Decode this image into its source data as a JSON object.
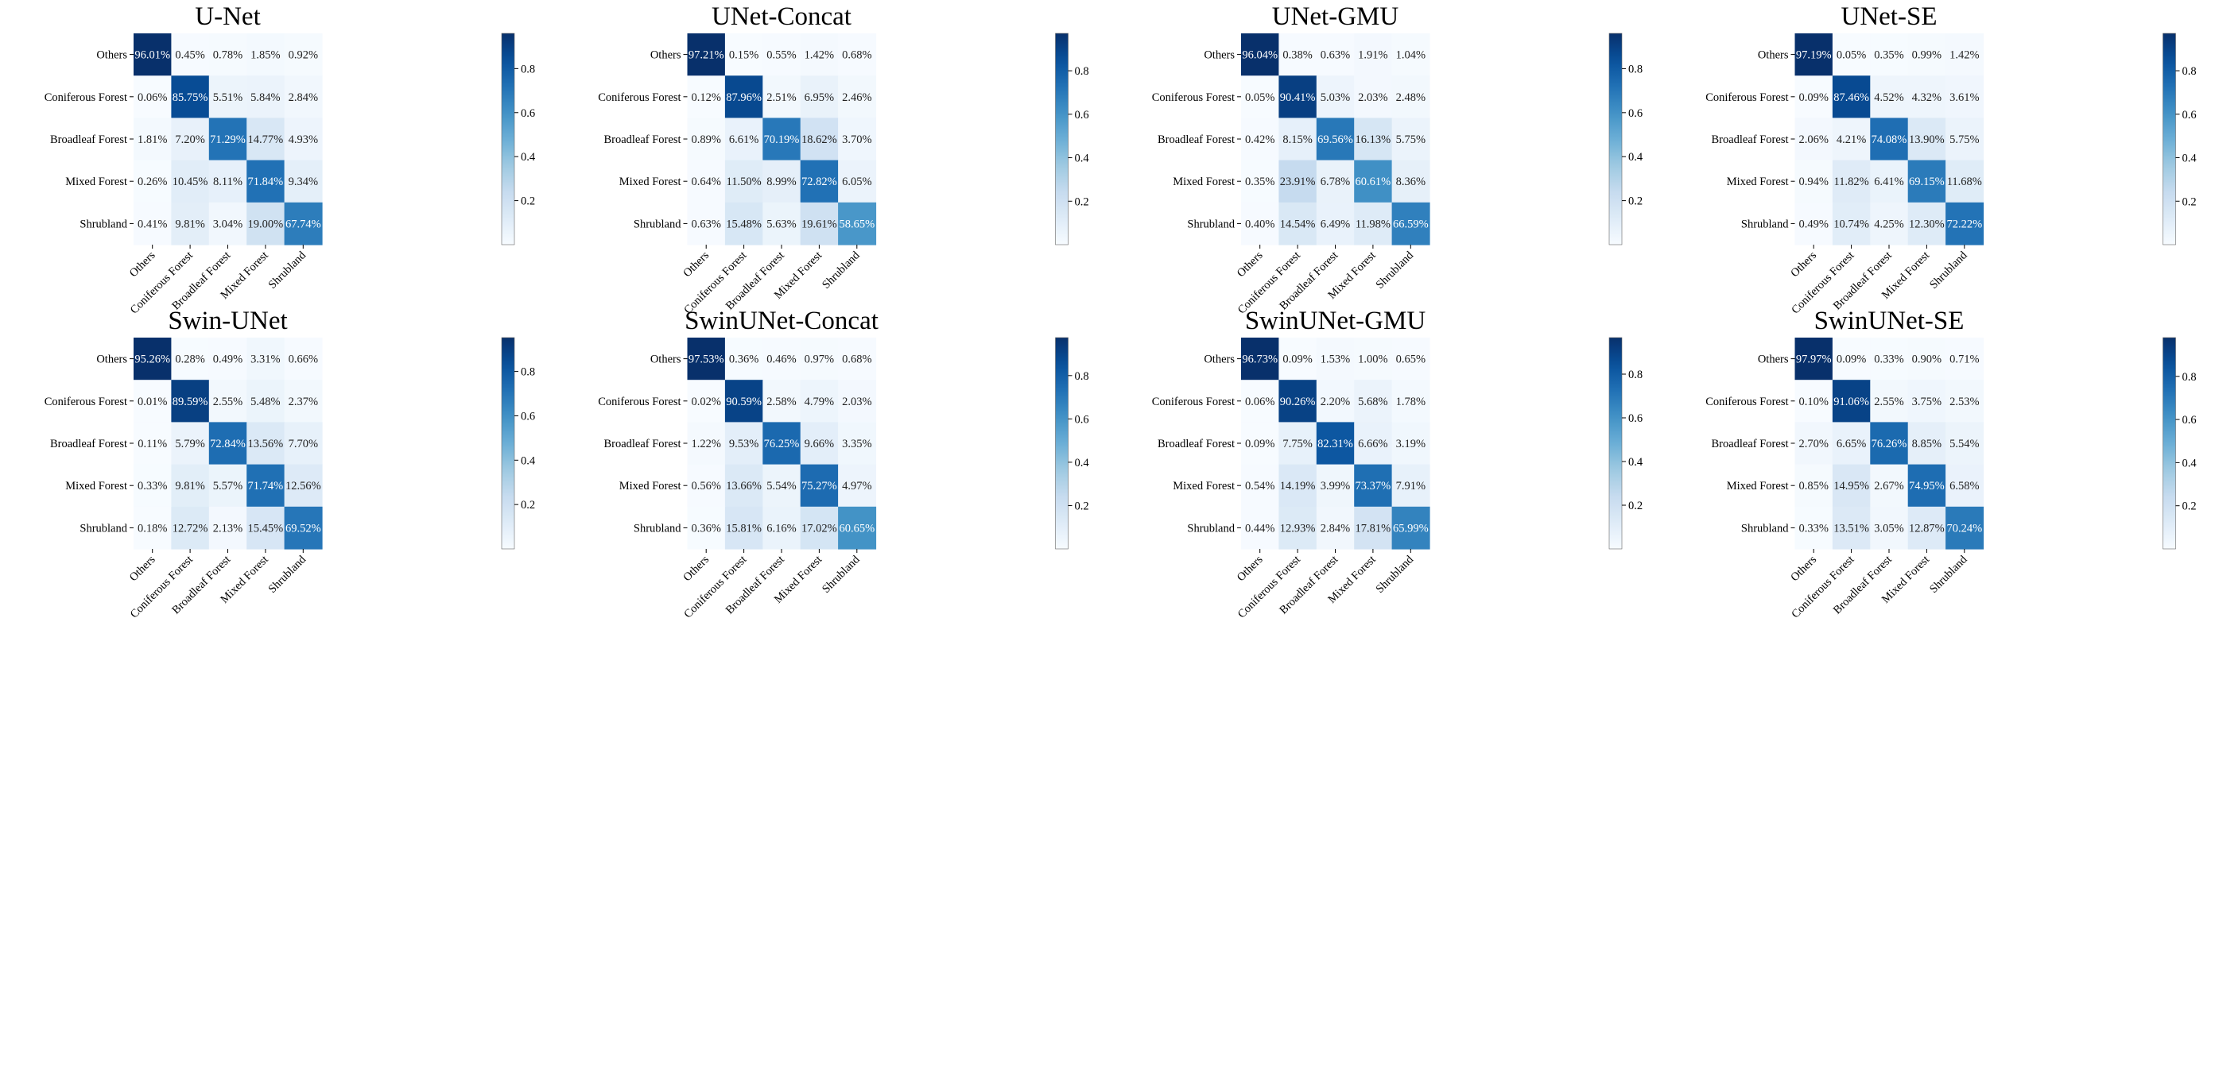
{
  "chart_data": [
    {
      "type": "heatmap",
      "title": "U-Net",
      "row_labels": [
        "Others",
        "Coniferous Forest",
        "Broadleaf Forest",
        "Mixed Forest",
        "Shrubland"
      ],
      "col_labels": [
        "Others",
        "Coniferous Forest",
        "Broadleaf Forest",
        "Mixed Forest",
        "Shrubland"
      ],
      "values": [
        [
          96.01,
          0.45,
          0.78,
          1.85,
          0.92
        ],
        [
          0.06,
          85.75,
          5.51,
          5.84,
          2.84
        ],
        [
          1.81,
          7.2,
          71.29,
          14.77,
          4.93
        ],
        [
          0.26,
          10.45,
          8.11,
          71.84,
          9.34
        ],
        [
          0.41,
          9.81,
          3.04,
          19.0,
          67.74
        ]
      ],
      "colorbar": {
        "range": [
          0,
          0.9601
        ],
        "ticks": [
          0.2,
          0.4,
          0.6,
          0.8
        ]
      }
    },
    {
      "type": "heatmap",
      "title": "UNet-Concat",
      "row_labels": [
        "Others",
        "Coniferous Forest",
        "Broadleaf Forest",
        "Mixed Forest",
        "Shrubland"
      ],
      "col_labels": [
        "Others",
        "Coniferous Forest",
        "Broadleaf Forest",
        "Mixed Forest",
        "Shrubland"
      ],
      "values": [
        [
          97.21,
          0.15,
          0.55,
          1.42,
          0.68
        ],
        [
          0.12,
          87.96,
          2.51,
          6.95,
          2.46
        ],
        [
          0.89,
          6.61,
          70.19,
          18.62,
          3.7
        ],
        [
          0.64,
          11.5,
          8.99,
          72.82,
          6.05
        ],
        [
          0.63,
          15.48,
          5.63,
          19.61,
          58.65
        ]
      ],
      "colorbar": {
        "range": [
          0,
          0.9721
        ],
        "ticks": [
          0.2,
          0.4,
          0.6,
          0.8
        ]
      }
    },
    {
      "type": "heatmap",
      "title": "UNet-GMU",
      "row_labels": [
        "Others",
        "Coniferous Forest",
        "Broadleaf Forest",
        "Mixed Forest",
        "Shrubland"
      ],
      "col_labels": [
        "Others",
        "Coniferous Forest",
        "Broadleaf Forest",
        "Mixed Forest",
        "Shrubland"
      ],
      "values": [
        [
          96.04,
          0.38,
          0.63,
          1.91,
          1.04
        ],
        [
          0.05,
          90.41,
          5.03,
          2.03,
          2.48
        ],
        [
          0.42,
          8.15,
          69.56,
          16.13,
          5.75
        ],
        [
          0.35,
          23.91,
          6.78,
          60.61,
          8.36
        ],
        [
          0.4,
          14.54,
          6.49,
          11.98,
          66.59
        ]
      ],
      "colorbar": {
        "range": [
          0,
          0.9604
        ],
        "ticks": [
          0.2,
          0.4,
          0.6,
          0.8
        ]
      }
    },
    {
      "type": "heatmap",
      "title": "UNet-SE",
      "row_labels": [
        "Others",
        "Coniferous Forest",
        "Broadleaf Forest",
        "Mixed Forest",
        "Shrubland"
      ],
      "col_labels": [
        "Others",
        "Coniferous Forest",
        "Broadleaf Forest",
        "Mixed Forest",
        "Shrubland"
      ],
      "values": [
        [
          97.19,
          0.05,
          0.35,
          0.99,
          1.42
        ],
        [
          0.09,
          87.46,
          4.52,
          4.32,
          3.61
        ],
        [
          2.06,
          4.21,
          74.08,
          13.9,
          5.75
        ],
        [
          0.94,
          11.82,
          6.41,
          69.15,
          11.68
        ],
        [
          0.49,
          10.74,
          4.25,
          12.3,
          72.22
        ]
      ],
      "colorbar": {
        "range": [
          0,
          0.9719
        ],
        "ticks": [
          0.2,
          0.4,
          0.6,
          0.8
        ]
      }
    },
    {
      "type": "heatmap",
      "title": "Swin-UNet",
      "row_labels": [
        "Others",
        "Coniferous Forest",
        "Broadleaf Forest",
        "Mixed Forest",
        "Shrubland"
      ],
      "col_labels": [
        "Others",
        "Coniferous Forest",
        "Broadleaf Forest",
        "Mixed Forest",
        "Shrubland"
      ],
      "values": [
        [
          95.26,
          0.28,
          0.49,
          3.31,
          0.66
        ],
        [
          0.01,
          89.59,
          2.55,
          5.48,
          2.37
        ],
        [
          0.11,
          5.79,
          72.84,
          13.56,
          7.7
        ],
        [
          0.33,
          9.81,
          5.57,
          71.74,
          12.56
        ],
        [
          0.18,
          12.72,
          2.13,
          15.45,
          69.52
        ]
      ],
      "colorbar": {
        "range": [
          0,
          0.9526
        ],
        "ticks": [
          0.2,
          0.4,
          0.6,
          0.8
        ]
      }
    },
    {
      "type": "heatmap",
      "title": "SwinUNet-Concat",
      "row_labels": [
        "Others",
        "Coniferous Forest",
        "Broadleaf Forest",
        "Mixed Forest",
        "Shrubland"
      ],
      "col_labels": [
        "Others",
        "Coniferous Forest",
        "Broadleaf Forest",
        "Mixed Forest",
        "Shrubland"
      ],
      "values": [
        [
          97.53,
          0.36,
          0.46,
          0.97,
          0.68
        ],
        [
          0.02,
          90.59,
          2.58,
          4.79,
          2.03
        ],
        [
          1.22,
          9.53,
          76.25,
          9.66,
          3.35
        ],
        [
          0.56,
          13.66,
          5.54,
          75.27,
          4.97
        ],
        [
          0.36,
          15.81,
          6.16,
          17.02,
          60.65
        ]
      ],
      "colorbar": {
        "range": [
          0,
          0.9753
        ],
        "ticks": [
          0.2,
          0.4,
          0.6,
          0.8
        ]
      }
    },
    {
      "type": "heatmap",
      "title": "SwinUNet-GMU",
      "row_labels": [
        "Others",
        "Coniferous Forest",
        "Broadleaf Forest",
        "Mixed Forest",
        "Shrubland"
      ],
      "col_labels": [
        "Others",
        "Coniferous Forest",
        "Broadleaf Forest",
        "Mixed Forest",
        "Shrubland"
      ],
      "values": [
        [
          96.73,
          0.09,
          1.53,
          1.0,
          0.65
        ],
        [
          0.06,
          90.26,
          2.2,
          5.68,
          1.78
        ],
        [
          0.09,
          7.75,
          82.31,
          6.66,
          3.19
        ],
        [
          0.54,
          14.19,
          3.99,
          73.37,
          7.91
        ],
        [
          0.44,
          12.93,
          2.84,
          17.81,
          65.99
        ]
      ],
      "colorbar": {
        "range": [
          0,
          0.9673
        ],
        "ticks": [
          0.2,
          0.4,
          0.6,
          0.8
        ]
      }
    },
    {
      "type": "heatmap",
      "title": "SwinUNet-SE",
      "row_labels": [
        "Others",
        "Coniferous Forest",
        "Broadleaf Forest",
        "Mixed Forest",
        "Shrubland"
      ],
      "col_labels": [
        "Others",
        "Coniferous Forest",
        "Broadleaf Forest",
        "Mixed Forest",
        "Shrubland"
      ],
      "values": [
        [
          97.97,
          0.09,
          0.33,
          0.9,
          0.71
        ],
        [
          0.1,
          91.06,
          2.55,
          3.75,
          2.53
        ],
        [
          2.7,
          6.65,
          76.26,
          8.85,
          5.54
        ],
        [
          0.85,
          14.95,
          2.67,
          74.95,
          6.58
        ],
        [
          0.33,
          13.51,
          3.05,
          12.87,
          70.24
        ]
      ],
      "colorbar": {
        "range": [
          0,
          0.9797
        ],
        "ticks": [
          0.2,
          0.4,
          0.6,
          0.8
        ]
      }
    }
  ]
}
